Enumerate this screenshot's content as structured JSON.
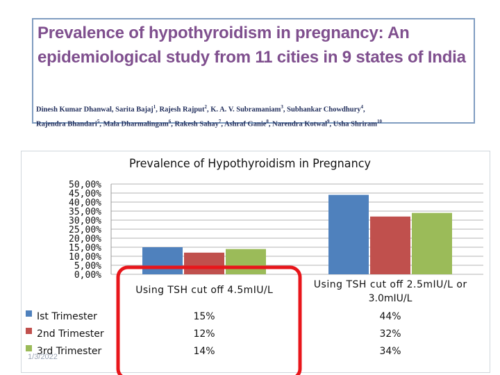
{
  "paper": {
    "title": "Prevalence of hypothyroidism in pregnancy: An epidemiological study from 11 cities in 9 states of India",
    "authors": [
      {
        "name": "Dinesh Kumar Dhanwal",
        "sup": ""
      },
      {
        "name": "Sarita Bajaj",
        "sup": "1"
      },
      {
        "name": "Rajesh Rajput",
        "sup": "2"
      },
      {
        "name": "K. A. V. Subramaniam",
        "sup": "3"
      },
      {
        "name": "Subhankar Chowdhury",
        "sup": "4"
      },
      {
        "name": "Rajendra Bhandari",
        "sup": "5"
      },
      {
        "name": "Mala Dharmalingam",
        "sup": "6"
      },
      {
        "name": "Rakesh Sahay",
        "sup": "7"
      },
      {
        "name": "Ashraf Ganie",
        "sup": "8"
      },
      {
        "name": "Narendra Kotwal",
        "sup": "9"
      },
      {
        "name": "Usha Shriram",
        "sup": "10"
      }
    ]
  },
  "date": "1/3/2022",
  "chart_data": {
    "type": "bar",
    "title": "Prevalence of Hypothyroidism in Pregnancy",
    "categories": [
      "Using TSH cut off 4.5mIU/L",
      "Using TSH cut off 2.5mIU/L or 3.0mIU/L"
    ],
    "category_lines": [
      [
        "Using TSH cut off 4.5mIU/L"
      ],
      [
        "Using TSH cut off 2.5mIU/L or",
        "3.0mIU/L"
      ]
    ],
    "series": [
      {
        "name": "Ist Trimester",
        "values": [
          0.15,
          0.44
        ],
        "labels": [
          "15%",
          "44%"
        ],
        "color": "#4f81bd"
      },
      {
        "name": "2nd Trimester",
        "values": [
          0.12,
          0.32
        ],
        "labels": [
          "12%",
          "32%"
        ],
        "color": "#c0504d"
      },
      {
        "name": "3rd Trimester",
        "values": [
          0.14,
          0.34
        ],
        "labels": [
          "14%",
          "34%"
        ],
        "color": "#9bbb59"
      }
    ],
    "ylim": [
      0,
      0.5
    ],
    "yticks": [
      "0,00%",
      "5,00%",
      "10,00%",
      "15,00%",
      "20,00%",
      "25,00%",
      "30,00%",
      "35,00%",
      "40,00%",
      "45,00%",
      "50,00%"
    ],
    "grid": true,
    "legend": "bottom-left data table",
    "highlight_color": "#e8161b"
  }
}
